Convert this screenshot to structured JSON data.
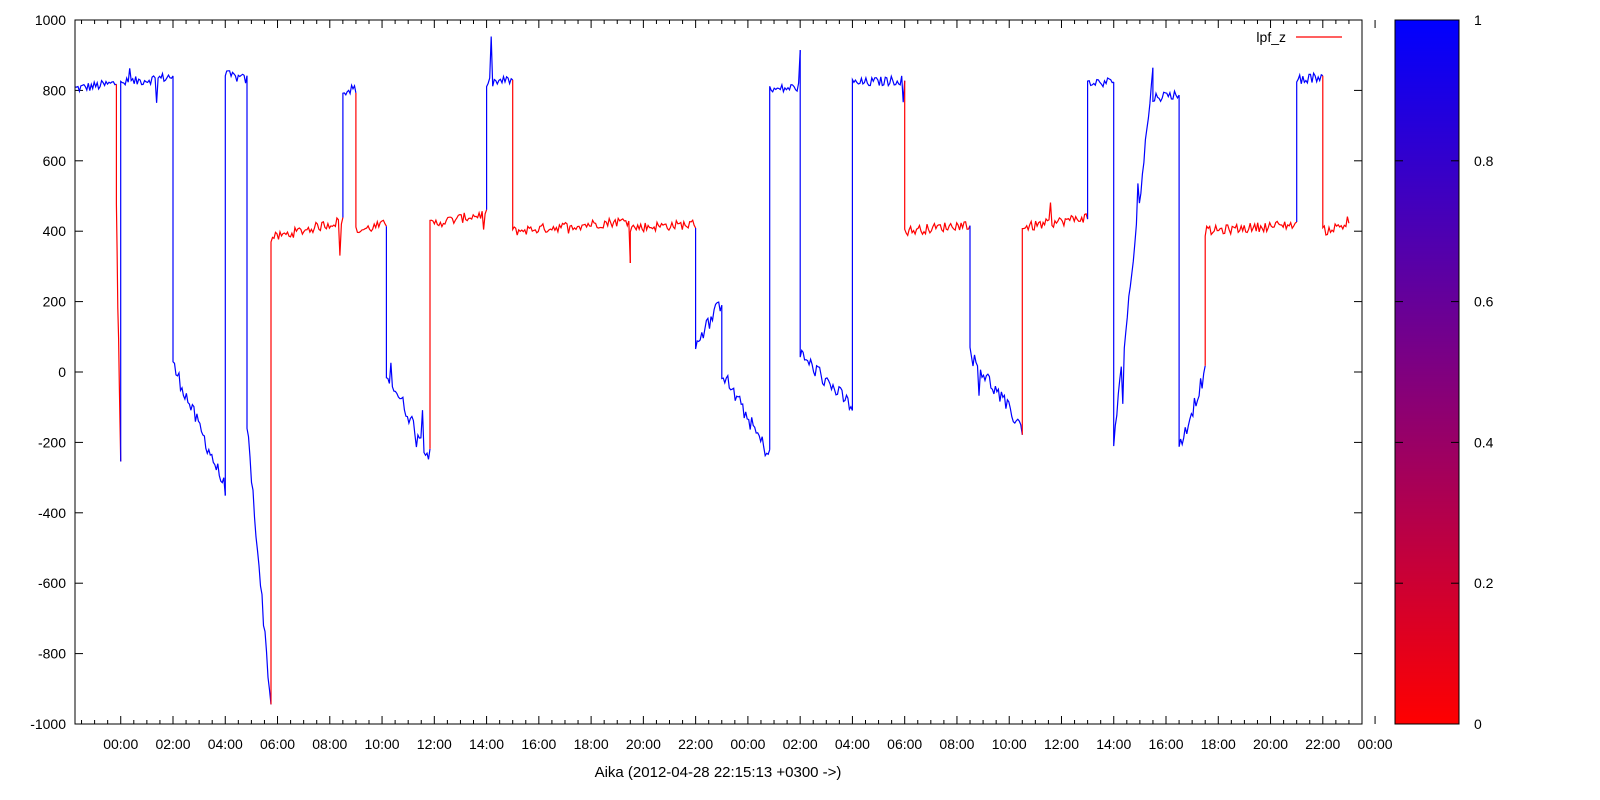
{
  "chart_data": {
    "type": "line",
    "title": "",
    "xlabel": "Aika (2012-04-28 22:15:13 +0300 ->)",
    "ylabel": "",
    "ylim": [
      -1000,
      1000
    ],
    "yticks": [
      -1000,
      -800,
      -600,
      -400,
      -200,
      0,
      200,
      400,
      600,
      800,
      1000
    ],
    "xlim": [
      "2012-04-28 22:15",
      "2012-04-30 23:30"
    ],
    "xticks": [
      "00:00",
      "02:00",
      "04:00",
      "06:00",
      "08:00",
      "10:00",
      "12:00",
      "14:00",
      "16:00",
      "18:00",
      "20:00",
      "22:00",
      "00:00",
      "02:00",
      "04:00",
      "06:00",
      "08:00",
      "10:00",
      "12:00",
      "14:00",
      "16:00",
      "18:00",
      "20:00",
      "22:00",
      "00:00"
    ],
    "legend": {
      "position": "top-right",
      "entries": [
        "lpf_z"
      ]
    },
    "colorbar": {
      "low_color": "#ff0000",
      "high_color": "#0000ff",
      "range": [
        0,
        1
      ],
      "ticks": [
        "0",
        "0.2",
        "0.4",
        "0.6",
        "0.8",
        "1"
      ]
    },
    "series": [
      {
        "name": "lpf_z",
        "color_scale": "red (0) → blue (1)",
        "segments": [
          {
            "x": [
              "2012-04-28 22:15",
              "2012-04-28 23:50"
            ],
            "y": [
              805,
              820
            ],
            "color": 1
          },
          {
            "x": [
              "2012-04-28 23:50",
              "2012-04-29 00:00"
            ],
            "y": [
              480,
              -270
            ],
            "color": 0
          },
          {
            "x": [
              "2012-04-29 00:00",
              "2012-04-29 02:00"
            ],
            "y": [
              820,
              840
            ],
            "color": 1
          },
          {
            "x": [
              "2012-04-29 02:00",
              "2012-04-29 04:00"
            ],
            "y": [
              20,
              -330
            ],
            "color": 1
          },
          {
            "x": [
              "2012-04-29 04:00",
              "2012-04-29 04:50"
            ],
            "y": [
              845,
              830
            ],
            "color": 1
          },
          {
            "x": [
              "2012-04-29 04:50",
              "2012-04-29 05:45"
            ],
            "y": [
              -150,
              -950
            ],
            "color": 1
          },
          {
            "x": [
              "2012-04-29 05:45",
              "2012-04-29 08:30"
            ],
            "y": [
              380,
              430
            ],
            "color": 0
          },
          {
            "x": [
              "2012-04-29 08:30",
              "2012-04-29 09:00"
            ],
            "y": [
              800,
              805
            ],
            "color": 1
          },
          {
            "x": [
              "2012-04-29 09:00",
              "2012-04-29 10:10"
            ],
            "y": [
              400,
              420
            ],
            "color": 0
          },
          {
            "x": [
              "2012-04-29 10:10",
              "2012-04-29 11:50"
            ],
            "y": [
              0,
              -240
            ],
            "color": 1
          },
          {
            "x": [
              "2012-04-29 11:50",
              "2012-04-29 14:00"
            ],
            "y": [
              420,
              450
            ],
            "color": 0
          },
          {
            "x": [
              "2012-04-29 14:00",
              "2012-04-29 15:00"
            ],
            "y": [
              820,
              830
            ],
            "color": 1
          },
          {
            "x": [
              "2012-04-29 15:00",
              "2012-04-29 19:30"
            ],
            "y": [
              400,
              430
            ],
            "color": 0
          },
          {
            "x": [
              "2012-04-29 19:30",
              "2012-04-29 22:00"
            ],
            "y": [
              410,
              420
            ],
            "color": 0
          },
          {
            "x": [
              "2012-04-29 22:00",
              "2012-04-29 23:00"
            ],
            "y": [
              80,
              200
            ],
            "color": 1
          },
          {
            "x": [
              "2012-04-29 23:00",
              "2012-04-30 00:50"
            ],
            "y": [
              0,
              -240
            ],
            "color": 1
          },
          {
            "x": [
              "2012-04-30 00:50",
              "2012-04-30 02:00"
            ],
            "y": [
              800,
              810
            ],
            "color": 1
          },
          {
            "x": [
              "2012-04-30 02:00",
              "2012-04-30 04:00"
            ],
            "y": [
              50,
              -100
            ],
            "color": 1
          },
          {
            "x": [
              "2012-04-30 04:00",
              "2012-04-30 06:00"
            ],
            "y": [
              820,
              830
            ],
            "color": 1
          },
          {
            "x": [
              "2012-04-30 06:00",
              "2012-04-30 08:30"
            ],
            "y": [
              400,
              420
            ],
            "color": 0
          },
          {
            "x": [
              "2012-04-30 08:30",
              "2012-04-30 10:30"
            ],
            "y": [
              50,
              -160
            ],
            "color": 1
          },
          {
            "x": [
              "2012-04-30 10:30",
              "2012-04-30 13:00"
            ],
            "y": [
              410,
              440
            ],
            "color": 0
          },
          {
            "x": [
              "2012-04-30 13:00",
              "2012-04-30 14:00"
            ],
            "y": [
              820,
              825
            ],
            "color": 1
          },
          {
            "x": [
              "2012-04-30 14:00",
              "2012-04-30 15:30"
            ],
            "y": [
              -200,
              850
            ],
            "color": 1
          },
          {
            "x": [
              "2012-04-30 15:30",
              "2012-04-30 16:30"
            ],
            "y": [
              780,
              790
            ],
            "color": 1
          },
          {
            "x": [
              "2012-04-30 16:30",
              "2012-04-30 17:30"
            ],
            "y": [
              -220,
              0
            ],
            "color": 1
          },
          {
            "x": [
              "2012-04-30 17:30",
              "2012-04-30 21:00"
            ],
            "y": [
              400,
              420
            ],
            "color": 0
          },
          {
            "x": [
              "2012-04-30 21:00",
              "2012-04-30 22:00"
            ],
            "y": [
              830,
              840
            ],
            "color": 1
          },
          {
            "x": [
              "2012-04-30 22:00",
              "2012-04-30 23:00"
            ],
            "y": [
              400,
              420
            ],
            "color": 0
          }
        ]
      }
    ]
  }
}
